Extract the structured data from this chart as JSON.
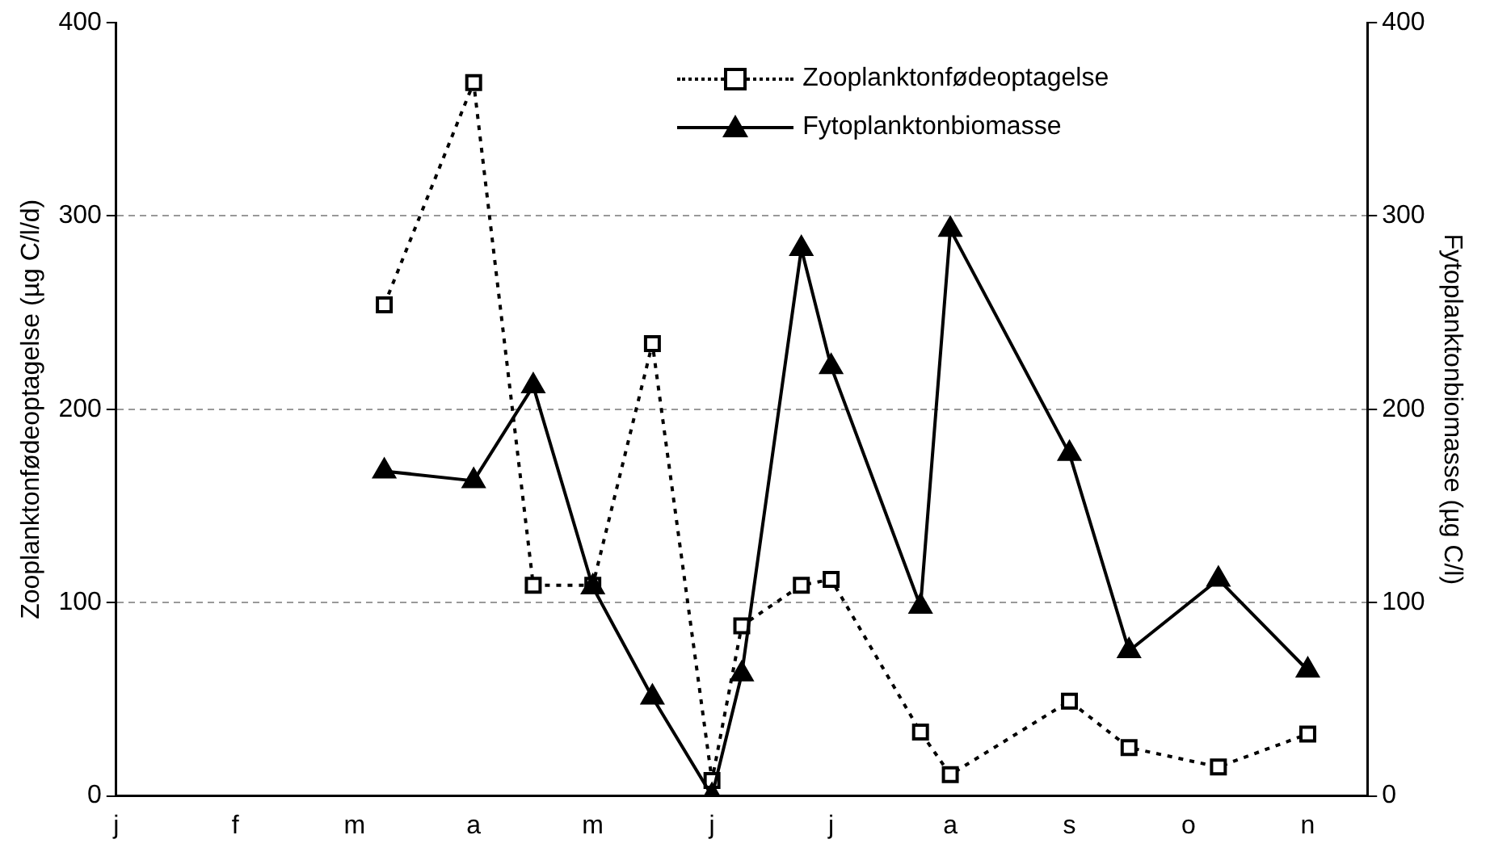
{
  "chart_data": {
    "type": "line",
    "ylabel": "Zooplanktonfødeoptagelse (µg C/l/d)",
    "y2label": "Fytoplanktonbiomasse (µg C/l)",
    "categories": [
      "j",
      null,
      null,
      null,
      "f",
      null,
      null,
      null,
      "m",
      null,
      null,
      null,
      "a",
      null,
      null,
      null,
      "m",
      null,
      null,
      null,
      "j",
      null,
      null,
      null,
      "j",
      null,
      null,
      null,
      "a",
      null,
      null,
      null,
      "s",
      null,
      null,
      null,
      "o",
      null,
      null,
      null,
      "n",
      null,
      null
    ],
    "series": [
      {
        "name": "Zooplanktonfødeoptagelse",
        "color": "#000000",
        "marker": "square",
        "line_style": "dotted",
        "values": [
          null,
          null,
          null,
          null,
          null,
          null,
          null,
          null,
          null,
          254,
          null,
          null,
          369,
          null,
          109,
          null,
          109,
          null,
          234,
          null,
          8,
          88,
          null,
          109,
          112,
          null,
          null,
          33,
          11,
          null,
          null,
          null,
          49,
          null,
          25,
          null,
          null,
          15,
          null,
          null,
          32,
          null,
          null
        ]
      },
      {
        "name": "Fytoplanktonbiomasse",
        "color": "#000000",
        "marker": "triangle",
        "line_style": "solid",
        "axis": "y2",
        "values": [
          null,
          null,
          null,
          null,
          null,
          null,
          null,
          null,
          null,
          168,
          null,
          null,
          163,
          null,
          212,
          null,
          108,
          null,
          51,
          null,
          0,
          63,
          null,
          283,
          222,
          null,
          null,
          98,
          293,
          null,
          null,
          null,
          177,
          null,
          75,
          null,
          null,
          112,
          null,
          null,
          65,
          null,
          null
        ]
      }
    ],
    "ylim": [
      0,
      400
    ],
    "yticks": [
      0,
      100,
      200,
      300,
      400
    ],
    "y2lim": [
      0,
      400
    ],
    "y2ticks": [
      0,
      100,
      200,
      300,
      400
    ],
    "grid": "y",
    "legend": "top right"
  }
}
